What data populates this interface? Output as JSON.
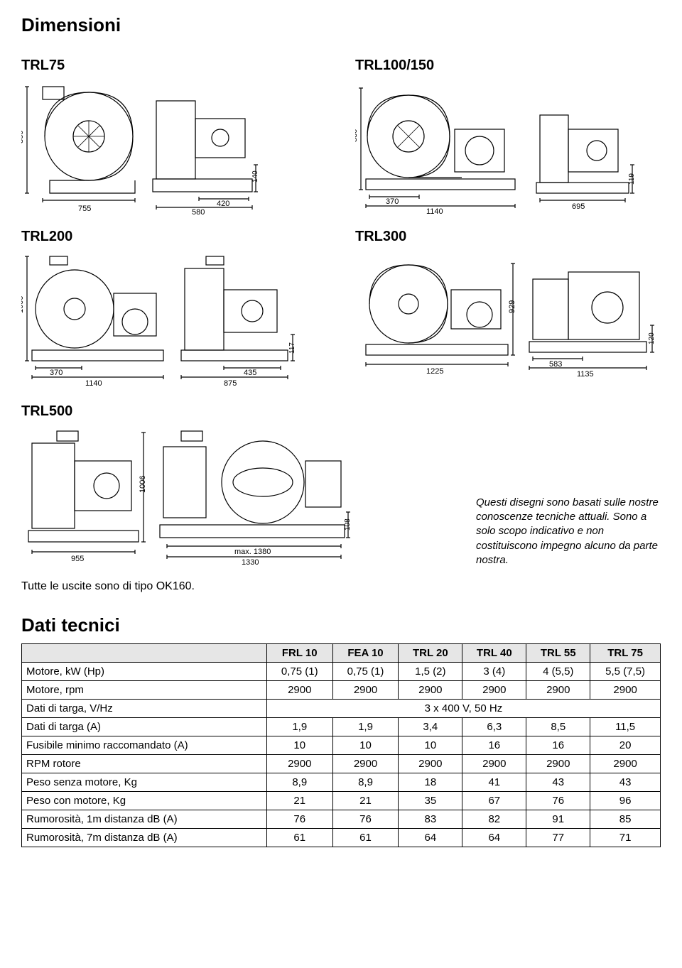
{
  "page": {
    "title": "Dimensioni",
    "tech_title": "Dati tecnici",
    "outlet_note": "Tutte le uscite sono di tipo OK160.",
    "drawings_note_l1": "Questi disegni sono basati sulle nostre conoscenze tecniche attuali. Sono a solo scopo indicativo e non costituiscono impegno alcuno da parte nostra."
  },
  "models": {
    "m1": "TRL75",
    "m2": "TRL100/150",
    "m3": "TRL200",
    "m4": "TRL300",
    "m5": "TRL500"
  },
  "dims": {
    "trl75": {
      "h": "860",
      "w1": "755",
      "w2": "420",
      "w3": "580",
      "h2": "140"
    },
    "trl100": {
      "h": "830",
      "w1": "370",
      "w2": "1140",
      "w3": "695",
      "h2": "119"
    },
    "trl200": {
      "h": "1000",
      "w1": "370",
      "w2": "1140",
      "w3": "435",
      "w4": "875",
      "h2": "117"
    },
    "trl300": {
      "h": "929",
      "w1": "1225",
      "w2": "583",
      "w3": "1135",
      "h2": "120"
    },
    "trl500": {
      "h": "1006",
      "w1": "955",
      "w2": "max. 1380",
      "w3": "1330",
      "h2": "108"
    }
  },
  "table": {
    "headers": [
      "",
      "FRL 10",
      "FEA 10",
      "TRL 20",
      "TRL 40",
      "TRL 55",
      "TRL 75"
    ],
    "rows": [
      {
        "label": "Motore, kW (Hp)",
        "cells": [
          "0,75 (1)",
          "0,75 (1)",
          "1,5 (2)",
          "3 (4)",
          "4 (5,5)",
          "5,5 (7,5)"
        ]
      },
      {
        "label": "Motore, rpm",
        "cells": [
          "2900",
          "2900",
          "2900",
          "2900",
          "2900",
          "2900"
        ]
      },
      {
        "label": "Dati di targa, V/Hz",
        "merged": "3 x 400 V, 50 Hz"
      },
      {
        "label": "Dati di targa (A)",
        "cells": [
          "1,9",
          "1,9",
          "3,4",
          "6,3",
          "8,5",
          "11,5"
        ]
      },
      {
        "label": "Fusibile minimo raccomandato (A)",
        "cells": [
          "10",
          "10",
          "10",
          "16",
          "16",
          "20"
        ]
      },
      {
        "label": "RPM rotore",
        "cells": [
          "2900",
          "2900",
          "2900",
          "2900",
          "2900",
          "2900"
        ]
      },
      {
        "label": "Peso senza motore, Kg",
        "cells": [
          "8,9",
          "8,9",
          "18",
          "41",
          "43",
          "43"
        ]
      },
      {
        "label": "Peso con motore, Kg",
        "cells": [
          "21",
          "21",
          "35",
          "67",
          "76",
          "96"
        ]
      },
      {
        "label": "Rumorosità, 1m distanza dB (A)",
        "cells": [
          "76",
          "76",
          "83",
          "82",
          "91",
          "85"
        ]
      },
      {
        "label": "Rumorosità, 7m distanza dB (A)",
        "cells": [
          "61",
          "61",
          "64",
          "64",
          "77",
          "71"
        ]
      }
    ]
  }
}
